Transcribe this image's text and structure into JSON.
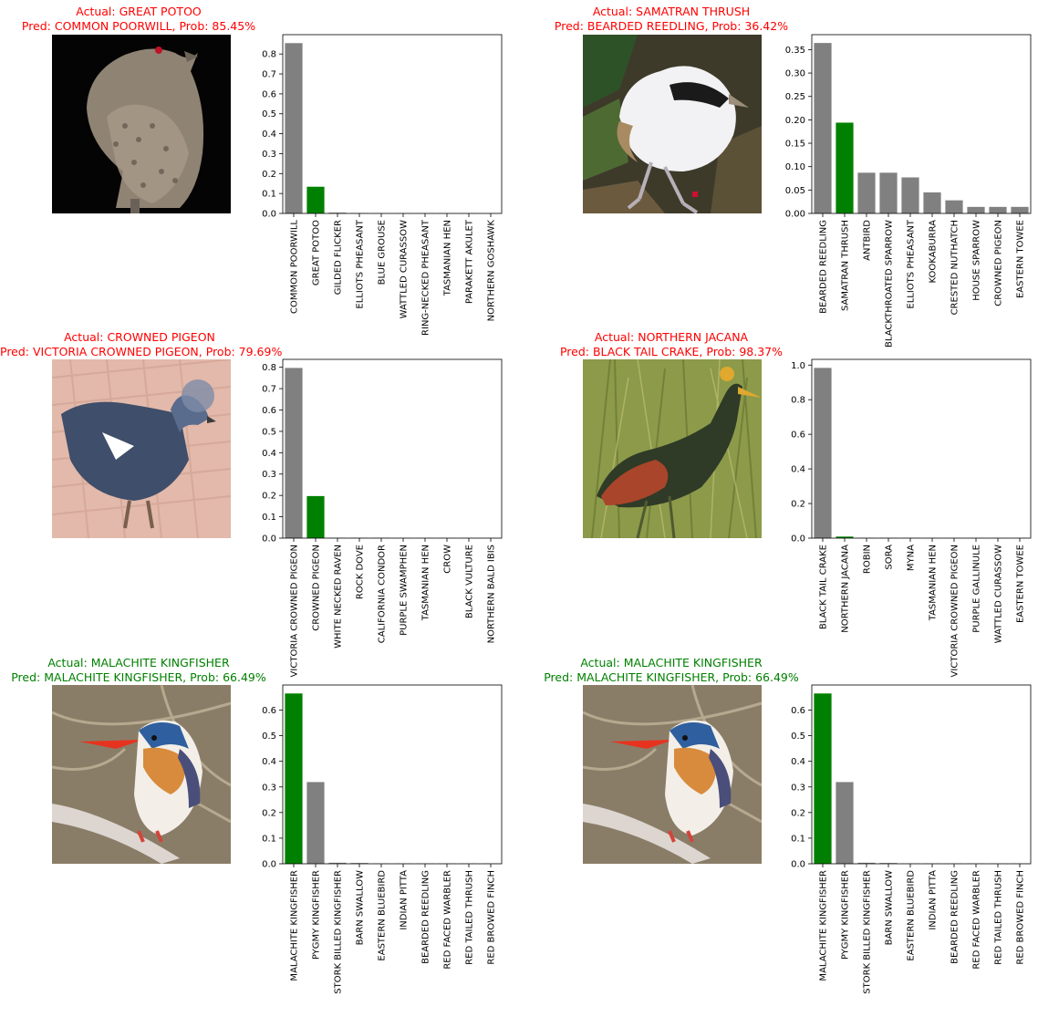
{
  "colors": {
    "wrong": "#ff0000",
    "right": "#008000",
    "bar_default": "#808080",
    "bar_true": "#008000"
  },
  "panels": [
    {
      "actual_line": "Actual: GREAT POTOO",
      "pred_line": "Pred: COMMON POORWILL, Prob: 85.45%",
      "correct": false,
      "photo": "great-potoo-photo",
      "chart_data": {
        "type": "bar",
        "categories": [
          "COMMON POORWILL",
          "GREAT POTOO",
          "GILDED FLICKER",
          "ELLIOTS  PHEASANT",
          "BLUE GROUSE",
          "WATTLED CURASSOW",
          "RING-NECKED PHEASANT",
          "TASMANIAN HEN",
          "PARAKETT  AKULET",
          "NORTHERN GOSHAWK"
        ],
        "values": [
          0.8545,
          0.134,
          0.004,
          0.002,
          0.001,
          0.001,
          0.001,
          0.001,
          0.001,
          0.001
        ],
        "highlight_index": 1,
        "ylim": [
          0,
          0.897
        ],
        "yticks": [
          "0.0",
          "0.1",
          "0.2",
          "0.3",
          "0.4",
          "0.5",
          "0.6",
          "0.7",
          "0.8"
        ]
      }
    },
    {
      "actual_line": "Actual: SAMATRAN THRUSH",
      "pred_line": "Pred: BEARDED REEDLING, Prob: 36.42%",
      "correct": false,
      "photo": "samatran-thrush-photo",
      "chart_data": {
        "type": "bar",
        "categories": [
          "BEARDED REEDLING",
          "SAMATRAN THRUSH",
          "ANTBIRD",
          "BLACKTHROATED SPARROW",
          "ELLIOTS  PHEASANT",
          "KOOKABURRA",
          "CRESTED NUTHATCH",
          "HOUSE SPARROW",
          "CROWNED PIGEON",
          "EASTERN TOWEE"
        ],
        "values": [
          0.3642,
          0.194,
          0.087,
          0.087,
          0.077,
          0.045,
          0.028,
          0.014,
          0.014,
          0.014
        ],
        "highlight_index": 1,
        "ylim": [
          0,
          0.382
        ],
        "yticks": [
          "0.00",
          "0.05",
          "0.10",
          "0.15",
          "0.20",
          "0.25",
          "0.30",
          "0.35"
        ]
      }
    },
    {
      "actual_line": "Actual: CROWNED PIGEON",
      "pred_line": "Pred: VICTORIA CROWNED PIGEON, Prob: 79.69%",
      "correct": false,
      "photo": "crowned-pigeon-photo",
      "chart_data": {
        "type": "bar",
        "categories": [
          "VICTORIA CROWNED PIGEON",
          "CROWNED PIGEON",
          "WHITE NECKED RAVEN",
          "ROCK DOVE",
          "CALIFORNIA CONDOR",
          "PURPLE SWAMPHEN",
          "TASMANIAN HEN",
          "CROW",
          "BLACK VULTURE",
          "NORTHERN BALD IBIS"
        ],
        "values": [
          0.7969,
          0.197,
          0.002,
          0.002,
          0.002,
          0.001,
          0.001,
          0.001,
          0.001,
          0.001
        ],
        "highlight_index": 1,
        "ylim": [
          0,
          0.837
        ],
        "yticks": [
          "0.0",
          "0.1",
          "0.2",
          "0.3",
          "0.4",
          "0.5",
          "0.6",
          "0.7",
          "0.8"
        ]
      }
    },
    {
      "actual_line": "Actual: NORTHERN JACANA",
      "pred_line": "Pred: BLACK TAIL CRAKE, Prob: 98.37%",
      "correct": false,
      "photo": "northern-jacana-photo",
      "chart_data": {
        "type": "bar",
        "categories": [
          "BLACK TAIL CRAKE",
          "NORTHERN JACANA",
          "ROBIN",
          "SORA",
          "MYNA",
          "TASMANIAN HEN",
          "VICTORIA CROWNED PIGEON",
          "PURPLE GALLINULE",
          "WATTLED CURASSOW",
          "EASTERN TOWEE"
        ],
        "values": [
          0.9837,
          0.009,
          0.002,
          0.002,
          0.002,
          0.001,
          0.001,
          0.001,
          0.001,
          0.001
        ],
        "highlight_index": 1,
        "ylim": [
          0,
          1.033
        ],
        "yticks": [
          "0.0",
          "0.2",
          "0.4",
          "0.6",
          "0.8",
          "1.0"
        ]
      }
    },
    {
      "actual_line": "Actual: MALACHITE KINGFISHER",
      "pred_line": "Pred: MALACHITE KINGFISHER, Prob: 66.49%",
      "correct": true,
      "photo": "malachite-kingfisher-photo",
      "chart_data": {
        "type": "bar",
        "categories": [
          "MALACHITE KINGFISHER",
          "PYGMY KINGFISHER",
          "STORK BILLED KINGFISHER",
          "BARN SWALLOW",
          "EASTERN BLUEBIRD",
          "INDIAN PITTA",
          "BEARDED REEDLING",
          "RED FACED WARBLER",
          "RED TAILED THRUSH",
          "RED BROWED FINCH"
        ],
        "values": [
          0.6649,
          0.319,
          0.004,
          0.003,
          0.001,
          0.001,
          0.001,
          0.001,
          0.001,
          0.001
        ],
        "highlight_index": 0,
        "ylim": [
          0,
          0.698
        ],
        "yticks": [
          "0.0",
          "0.1",
          "0.2",
          "0.3",
          "0.4",
          "0.5",
          "0.6"
        ]
      }
    },
    {
      "actual_line": "Actual: MALACHITE KINGFISHER",
      "pred_line": "Pred: MALACHITE KINGFISHER, Prob: 66.49%",
      "correct": true,
      "photo": "malachite-kingfisher-photo",
      "chart_data": {
        "type": "bar",
        "categories": [
          "MALACHITE KINGFISHER",
          "PYGMY KINGFISHER",
          "STORK BILLED KINGFISHER",
          "BARN SWALLOW",
          "EASTERN BLUEBIRD",
          "INDIAN PITTA",
          "BEARDED REEDLING",
          "RED FACED WARBLER",
          "RED TAILED THRUSH",
          "RED BROWED FINCH"
        ],
        "values": [
          0.6649,
          0.319,
          0.004,
          0.003,
          0.001,
          0.001,
          0.001,
          0.001,
          0.001,
          0.001
        ],
        "highlight_index": 0,
        "ylim": [
          0,
          0.698
        ],
        "yticks": [
          "0.0",
          "0.1",
          "0.2",
          "0.3",
          "0.4",
          "0.5",
          "0.6"
        ]
      }
    }
  ]
}
